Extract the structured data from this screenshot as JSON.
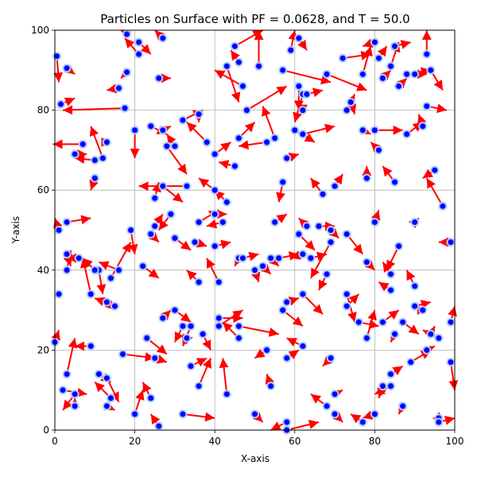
{
  "chart_data": {
    "type": "scatter",
    "title": "Particles on Surface with PF = 0.0628, and T = 50.0",
    "xlabel": "X-axis",
    "ylabel": "Y-axis",
    "xlim": [
      0,
      100
    ],
    "ylim": [
      0,
      100
    ],
    "xticks": [
      "0",
      "20",
      "40",
      "60",
      "80",
      "100"
    ],
    "yticks": [
      "0",
      "20",
      "40",
      "60",
      "80",
      "100"
    ],
    "grid": true,
    "colors": {
      "particle_fill": "#0000ff",
      "particle_edge": "#aaccff",
      "arrow": "#ff0000"
    },
    "particles": [
      [
        0.5,
        93.5,
        1,
        87
      ],
      [
        1.5,
        81.5,
        5,
        83
      ],
      [
        3,
        90.5,
        5,
        89
      ],
      [
        7,
        71.5,
        -0.5,
        71.5
      ],
      [
        10,
        63,
        9,
        60
      ],
      [
        12,
        68,
        9,
        76
      ],
      [
        10,
        67.5,
        5,
        68
      ],
      [
        5,
        69,
        8,
        69
      ],
      [
        13,
        72,
        14,
        72
      ],
      [
        16,
        85.5,
        13,
        85
      ],
      [
        17.5,
        80.5,
        2,
        80
      ],
      [
        18,
        89.5,
        16.5,
        88
      ],
      [
        18,
        99,
        16.5,
        100
      ],
      [
        20,
        75,
        20,
        68
      ],
      [
        21,
        97,
        24,
        94
      ],
      [
        21,
        94,
        17.5,
        98
      ],
      [
        26,
        88,
        29,
        88
      ],
      [
        27,
        98,
        25,
        100
      ],
      [
        24,
        76,
        28,
        74
      ],
      [
        27,
        75,
        29,
        76
      ],
      [
        28,
        71,
        33,
        64
      ],
      [
        32,
        77.5,
        37,
        80
      ],
      [
        30,
        71,
        28,
        74
      ],
      [
        36,
        79,
        36,
        77
      ],
      [
        38,
        72,
        33,
        77
      ],
      [
        40,
        69,
        44,
        72
      ],
      [
        46,
        92,
        44,
        95
      ],
      [
        43,
        91,
        46,
        82
      ],
      [
        45,
        96,
        52,
        100
      ],
      [
        47,
        86,
        40,
        90
      ],
      [
        48,
        80,
        58,
        86
      ],
      [
        51,
        91,
        51,
        100
      ],
      [
        57,
        90,
        69,
        87
      ],
      [
        59,
        95,
        60,
        100
      ],
      [
        61,
        98,
        63,
        95
      ],
      [
        61,
        86,
        61,
        80
      ],
      [
        62,
        84,
        60,
        77
      ],
      [
        62,
        80,
        62,
        79
      ],
      [
        62,
        74,
        70,
        76
      ],
      [
        60,
        75,
        65,
        72
      ],
      [
        63,
        84,
        67,
        85
      ],
      [
        68,
        89,
        78,
        85
      ],
      [
        72,
        93,
        79,
        94
      ],
      [
        74,
        82,
        75,
        79
      ],
      [
        73,
        80,
        75,
        84
      ],
      [
        77,
        89,
        79,
        96
      ],
      [
        80,
        97,
        77,
        96
      ],
      [
        81,
        93,
        83,
        96
      ],
      [
        81,
        70,
        79,
        72
      ],
      [
        80,
        75,
        87,
        75
      ],
      [
        82,
        88,
        84,
        90
      ],
      [
        84,
        91,
        86,
        97
      ],
      [
        85,
        96,
        89,
        97
      ],
      [
        86,
        86,
        88,
        88
      ],
      [
        88,
        89,
        94,
        90
      ],
      [
        90,
        89,
        93,
        89
      ],
      [
        93,
        94,
        93,
        100
      ],
      [
        94,
        90,
        97,
        85
      ],
      [
        93,
        81,
        98,
        80
      ],
      [
        92,
        76,
        91,
        79
      ],
      [
        88,
        74,
        92,
        77
      ],
      [
        85,
        62,
        82,
        66
      ],
      [
        78,
        63,
        78,
        66
      ],
      [
        77,
        75,
        79,
        74
      ],
      [
        70,
        61,
        72,
        64
      ],
      [
        67,
        59,
        64,
        63
      ],
      [
        58,
        68,
        61,
        69
      ],
      [
        55,
        73,
        52,
        81
      ],
      [
        53,
        72,
        46,
        71
      ],
      [
        46,
        73,
        50,
        77
      ],
      [
        45,
        66,
        41,
        67
      ],
      [
        43,
        57,
        40,
        60
      ],
      [
        40,
        60,
        36,
        63
      ],
      [
        33,
        61,
        21,
        61
      ],
      [
        29,
        54,
        26,
        50
      ],
      [
        27,
        61,
        32,
        57
      ],
      [
        25,
        58,
        26,
        62
      ],
      [
        25,
        51,
        27,
        54
      ],
      [
        24,
        49,
        26,
        47
      ],
      [
        22,
        41,
        26,
        38
      ],
      [
        19,
        50,
        20,
        44
      ],
      [
        16,
        40,
        11,
        42
      ],
      [
        14,
        38,
        19,
        47
      ],
      [
        11,
        40,
        12,
        34
      ],
      [
        10,
        40,
        7,
        43
      ],
      [
        9,
        34,
        7,
        43
      ],
      [
        13,
        32,
        15,
        30
      ],
      [
        15,
        31,
        10,
        33
      ],
      [
        6,
        43,
        3,
        43
      ],
      [
        3,
        52,
        9,
        53
      ],
      [
        1,
        50,
        0,
        53
      ],
      [
        3,
        40,
        4,
        45
      ],
      [
        3,
        44,
        4,
        41
      ],
      [
        1,
        34,
        1,
        34
      ],
      [
        0,
        22,
        1,
        25
      ],
      [
        2,
        10,
        8,
        9
      ],
      [
        3,
        14,
        5,
        23
      ],
      [
        5,
        9,
        2,
        5
      ],
      [
        5,
        6,
        5,
        8
      ],
      [
        9,
        21,
        5,
        21
      ],
      [
        11,
        14,
        14,
        12
      ],
      [
        13,
        13,
        16,
        7
      ],
      [
        14,
        8,
        10,
        12
      ],
      [
        13,
        6,
        15,
        5
      ],
      [
        17,
        19,
        25,
        18
      ],
      [
        20,
        4,
        22,
        10
      ],
      [
        24,
        8,
        22,
        12
      ],
      [
        26,
        1,
        24,
        4
      ],
      [
        25,
        18,
        28,
        17
      ],
      [
        23,
        23,
        28,
        19
      ],
      [
        27,
        28,
        29,
        30
      ],
      [
        30,
        30,
        34,
        27
      ],
      [
        32,
        26,
        30,
        22
      ],
      [
        34,
        26,
        32,
        21
      ],
      [
        33,
        23,
        32,
        24
      ],
      [
        37,
        24,
        39,
        20
      ],
      [
        36,
        11,
        39,
        18
      ],
      [
        34,
        16,
        38,
        18
      ],
      [
        32,
        4,
        40,
        3
      ],
      [
        30,
        48,
        34,
        45
      ],
      [
        35,
        47,
        38,
        46
      ],
      [
        36,
        52,
        41,
        55
      ],
      [
        40,
        54,
        43,
        54
      ],
      [
        42,
        52,
        38,
        51
      ],
      [
        40,
        46,
        44,
        47
      ],
      [
        46,
        43,
        45,
        41
      ],
      [
        47,
        43,
        51,
        44
      ],
      [
        50,
        40,
        51,
        37
      ],
      [
        54,
        43,
        56,
        41
      ],
      [
        52,
        41,
        54,
        39
      ],
      [
        56,
        43,
        61,
        44
      ],
      [
        55,
        52,
        58,
        54
      ],
      [
        57,
        62,
        56,
        57
      ],
      [
        61,
        49,
        65,
        45
      ],
      [
        63,
        51,
        61,
        53
      ],
      [
        66,
        51,
        70,
        51
      ],
      [
        69,
        50,
        71,
        48
      ],
      [
        69,
        47,
        64,
        38
      ],
      [
        68,
        39,
        66,
        35
      ],
      [
        64,
        43,
        68,
        44
      ],
      [
        62,
        44,
        59,
        43
      ],
      [
        58,
        32,
        61,
        33
      ],
      [
        57,
        30,
        62,
        26
      ],
      [
        62,
        34,
        67,
        29
      ],
      [
        73,
        49,
        77,
        44
      ],
      [
        78,
        42,
        80,
        40
      ],
      [
        80,
        52,
        81,
        55
      ],
      [
        84,
        39,
        82,
        42
      ],
      [
        86,
        46,
        83,
        40
      ],
      [
        84,
        35,
        81,
        37
      ],
      [
        90,
        52,
        91,
        53
      ],
      [
        90,
        36,
        88,
        40
      ],
      [
        90,
        31,
        94,
        32
      ],
      [
        92,
        30,
        93,
        30
      ],
      [
        94,
        24,
        95,
        26
      ],
      [
        96,
        23,
        92,
        25
      ],
      [
        97,
        56,
        93,
        63
      ],
      [
        99,
        47,
        96,
        47
      ],
      [
        99,
        27,
        100,
        31
      ],
      [
        99,
        17,
        100,
        10
      ],
      [
        95,
        65,
        92,
        63
      ],
      [
        73,
        34,
        75,
        27
      ],
      [
        73,
        31,
        76,
        34
      ],
      [
        76,
        27,
        81,
        26
      ],
      [
        78,
        23,
        80,
        30
      ],
      [
        82,
        27,
        86,
        30
      ],
      [
        85,
        24,
        84,
        22
      ],
      [
        87,
        27,
        91,
        24
      ],
      [
        89,
        17,
        94,
        20
      ],
      [
        93,
        20,
        95,
        21
      ],
      [
        84,
        14,
        87,
        16
      ],
      [
        82,
        11,
        81,
        8
      ],
      [
        84,
        11,
        80,
        9
      ],
      [
        87,
        6,
        86,
        4
      ],
      [
        80,
        4,
        77,
        3
      ],
      [
        77,
        2,
        74,
        4
      ],
      [
        70,
        9,
        72,
        10
      ],
      [
        70,
        4,
        72,
        2
      ],
      [
        68,
        6,
        64,
        9
      ],
      [
        69,
        18,
        67,
        16
      ],
      [
        62,
        21,
        58,
        23
      ],
      [
        58,
        18,
        61,
        20
      ],
      [
        53,
        20,
        50,
        18
      ],
      [
        54,
        11,
        53,
        14
      ],
      [
        50,
        4,
        52,
        2
      ],
      [
        43,
        9,
        42,
        18
      ],
      [
        41,
        28,
        47,
        28
      ],
      [
        41,
        26,
        47,
        30
      ],
      [
        46,
        26,
        56,
        24
      ],
      [
        46,
        23,
        42,
        27
      ],
      [
        41,
        37,
        38,
        43
      ],
      [
        36,
        37,
        33,
        40
      ],
      [
        58,
        0,
        66,
        2
      ],
      [
        58,
        2,
        54,
        0
      ],
      [
        96,
        3,
        97,
        2
      ],
      [
        96,
        2,
        100,
        3
      ]
    ]
  }
}
